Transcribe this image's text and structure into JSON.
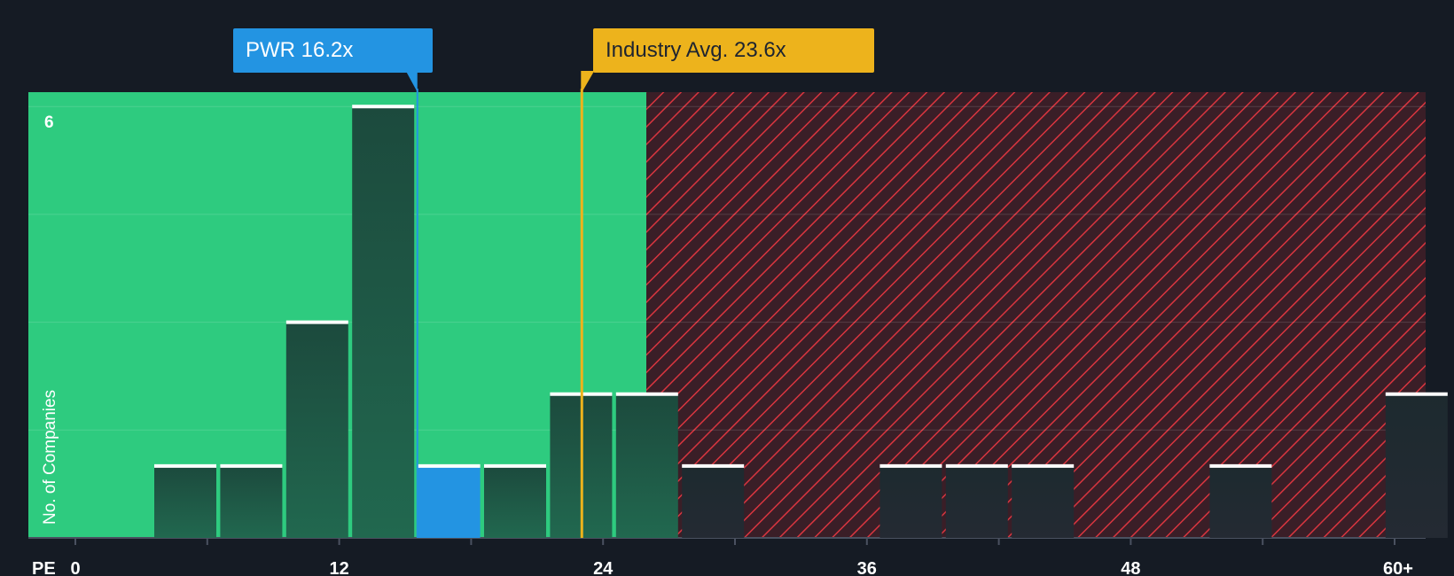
{
  "chart_data": {
    "type": "bar",
    "xlabel": "PE",
    "ylabel": "No. of Companies",
    "x_ticks": [
      "0",
      "12",
      "24",
      "36",
      "48",
      "60+"
    ],
    "y_ticks": [
      "6"
    ],
    "xlim": [
      0,
      61
    ],
    "ylim": [
      0,
      6.2
    ],
    "bins": [
      {
        "x": 5,
        "count": 1
      },
      {
        "x": 8,
        "count": 1
      },
      {
        "x": 11,
        "count": 3
      },
      {
        "x": 14,
        "count": 6
      },
      {
        "x": 17,
        "count": 1,
        "highlight": true
      },
      {
        "x": 20,
        "count": 1
      },
      {
        "x": 23,
        "count": 2
      },
      {
        "x": 26,
        "count": 2
      },
      {
        "x": 29,
        "count": 1
      },
      {
        "x": 38,
        "count": 1
      },
      {
        "x": 41,
        "count": 1
      },
      {
        "x": 44,
        "count": 1
      },
      {
        "x": 53,
        "count": 1
      },
      {
        "x": 61,
        "count": 2
      }
    ],
    "company": {
      "ticker": "PWR",
      "value": 16.2,
      "label": "PWR 16.2x"
    },
    "industry": {
      "value": 23.6,
      "label": "Industry Avg. 23.6x"
    },
    "fair_zone_max": 22.5
  },
  "colors": {
    "background": "#151b24",
    "fair_zone": "#2ecb7f",
    "overvalued_zone": "#7a2a33",
    "hatch": "#d9353f",
    "bar_dark": "#1f4a3e",
    "bar_highlight": "#2394e2",
    "company_line": "#2394e2",
    "industry_line": "#edb31c",
    "bar_cap": "#ffffff",
    "tick_text": "#ffffff"
  }
}
